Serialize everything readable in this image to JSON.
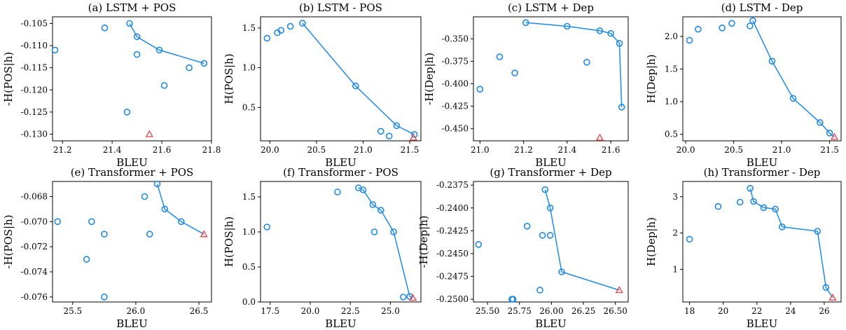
{
  "colors": {
    "series": "#1f8ae6",
    "marker": "#e05050",
    "axis": "#000000"
  },
  "chart_data": [
    {
      "type": "scatter",
      "title": "(a) LSTM + POS",
      "xlabel": "BLEU",
      "ylabel": "-H(POS|h)",
      "xlim": [
        21.16,
        21.8
      ],
      "ylim": [
        -0.1315,
        -0.1035
      ],
      "xticks": [
        21.2,
        21.4,
        21.6,
        21.8
      ],
      "xtick_labels": [
        "21.2",
        "21.4",
        "21.6",
        "21.8"
      ],
      "yticks": [
        -0.105,
        -0.11,
        -0.115,
        -0.12,
        -0.125,
        -0.13
      ],
      "ytick_labels": [
        "-0.105",
        "-0.110",
        "-0.115",
        "-0.120",
        "-0.125",
        "-0.130"
      ],
      "points": [
        [
          21.17,
          -0.111
        ],
        [
          21.37,
          -0.106
        ],
        [
          21.47,
          -0.105
        ],
        [
          21.5,
          -0.108
        ],
        [
          21.59,
          -0.111
        ],
        [
          21.77,
          -0.114
        ],
        [
          21.5,
          -0.112
        ],
        [
          21.71,
          -0.115
        ],
        [
          21.61,
          -0.119
        ],
        [
          21.46,
          -0.125
        ]
      ],
      "front": [
        [
          21.47,
          -0.105
        ],
        [
          21.5,
          -0.108
        ],
        [
          21.59,
          -0.111
        ],
        [
          21.77,
          -0.114
        ]
      ],
      "marker": [
        21.55,
        -0.13
      ],
      "grid": false
    },
    {
      "type": "scatter",
      "title": "(b) LSTM - POS",
      "xlabel": "BLEU",
      "ylabel": "H(POS|h)",
      "xlim": [
        19.9,
        21.62
      ],
      "ylim": [
        0.08,
        1.64
      ],
      "xticks": [
        20.0,
        20.5,
        21.0,
        21.5
      ],
      "xtick_labels": [
        "20.0",
        "20.5",
        "21.0",
        "21.5"
      ],
      "yticks": [
        0.5,
        1.0,
        1.5
      ],
      "ytick_labels": [
        "0.5",
        "1.0",
        "1.5"
      ],
      "points": [
        [
          19.97,
          1.37
        ],
        [
          20.08,
          1.44
        ],
        [
          20.12,
          1.47
        ],
        [
          20.22,
          1.52
        ],
        [
          20.35,
          1.56
        ],
        [
          20.92,
          0.77
        ],
        [
          21.19,
          0.2
        ],
        [
          21.28,
          0.14
        ],
        [
          21.36,
          0.27
        ],
        [
          21.55,
          0.16
        ]
      ],
      "front": [
        [
          20.35,
          1.56
        ],
        [
          20.92,
          0.77
        ],
        [
          21.36,
          0.27
        ],
        [
          21.55,
          0.16
        ]
      ],
      "marker": [
        21.54,
        0.12
      ],
      "grid": false
    },
    {
      "type": "scatter",
      "title": "(c) LSTM + Dep",
      "xlabel": "BLEU",
      "ylabel": "-H(Dep|h)",
      "xlim": [
        20.97,
        21.68
      ],
      "ylim": [
        -0.4635,
        -0.3255
      ],
      "xticks": [
        21.0,
        21.2,
        21.4,
        21.6
      ],
      "xtick_labels": [
        "21.0",
        "21.2",
        "21.4",
        "21.6"
      ],
      "yticks": [
        -0.35,
        -0.375,
        -0.4,
        -0.425,
        -0.45
      ],
      "ytick_labels": [
        "-0.350",
        "-0.375",
        "-0.400",
        "-0.425",
        "-0.450"
      ],
      "points": [
        [
          21.0,
          -0.406
        ],
        [
          21.09,
          -0.37
        ],
        [
          21.16,
          -0.388
        ],
        [
          21.21,
          -0.332
        ],
        [
          21.4,
          -0.336
        ],
        [
          21.55,
          -0.341
        ],
        [
          21.6,
          -0.344
        ],
        [
          21.64,
          -0.355
        ],
        [
          21.65,
          -0.426
        ],
        [
          21.49,
          -0.376
        ]
      ],
      "front": [
        [
          21.21,
          -0.332
        ],
        [
          21.4,
          -0.336
        ],
        [
          21.55,
          -0.341
        ],
        [
          21.6,
          -0.344
        ],
        [
          21.64,
          -0.355
        ],
        [
          21.65,
          -0.426
        ]
      ],
      "marker": [
        21.55,
        -0.46
      ],
      "grid": false
    },
    {
      "type": "scatter",
      "title": "(d) LSTM - Dep",
      "xlabel": "BLEU",
      "ylabel": "H(Dep|h)",
      "xlim": [
        19.97,
        21.62
      ],
      "ylim": [
        0.4,
        2.3
      ],
      "xticks": [
        20.0,
        20.5,
        21.0,
        21.5
      ],
      "xtick_labels": [
        "20.0",
        "20.5",
        "21.0",
        "21.5"
      ],
      "yticks": [
        0.5,
        1.0,
        1.5,
        2.0
      ],
      "ytick_labels": [
        "0.5",
        "1.0",
        "1.5",
        "2.0"
      ],
      "points": [
        [
          20.04,
          1.94
        ],
        [
          20.13,
          2.11
        ],
        [
          20.38,
          2.13
        ],
        [
          20.48,
          2.2
        ],
        [
          20.67,
          2.16
        ],
        [
          20.7,
          2.24
        ],
        [
          20.9,
          1.62
        ],
        [
          21.12,
          1.05
        ],
        [
          21.4,
          0.68
        ],
        [
          21.5,
          0.52
        ]
      ],
      "front": [
        [
          20.7,
          2.24
        ],
        [
          20.9,
          1.62
        ],
        [
          21.12,
          1.05
        ],
        [
          21.4,
          0.68
        ],
        [
          21.5,
          0.52
        ],
        [
          21.55,
          0.46
        ]
      ],
      "marker": [
        21.55,
        0.46
      ],
      "grid": false
    },
    {
      "type": "scatter",
      "title": "(e) Transformer + POS",
      "xlabel": "BLEU",
      "ylabel": "-H(POS|h)",
      "xlim": [
        25.34,
        26.6
      ],
      "ylim": [
        -0.0764,
        -0.0668
      ],
      "xticks": [
        25.5,
        26.0,
        26.5
      ],
      "xtick_labels": [
        "25.5",
        "26.0",
        "26.5"
      ],
      "yticks": [
        -0.068,
        -0.07,
        -0.072,
        -0.074,
        -0.076
      ],
      "ytick_labels": [
        "-0.068",
        "-0.070",
        "-0.072",
        "-0.074",
        "-0.076"
      ],
      "points": [
        [
          25.38,
          -0.07
        ],
        [
          25.65,
          -0.07
        ],
        [
          25.61,
          -0.073
        ],
        [
          25.75,
          -0.071
        ],
        [
          25.75,
          -0.076
        ],
        [
          26.07,
          -0.068
        ],
        [
          26.11,
          -0.071
        ],
        [
          26.17,
          -0.067
        ],
        [
          26.23,
          -0.069
        ],
        [
          26.36,
          -0.07
        ]
      ],
      "front": [
        [
          26.17,
          -0.067
        ],
        [
          26.23,
          -0.069
        ],
        [
          26.36,
          -0.07
        ],
        [
          26.54,
          -0.071
        ]
      ],
      "marker": [
        26.54,
        -0.071
      ],
      "grid": false
    },
    {
      "type": "scatter",
      "title": "(f) Transformer - POS",
      "xlabel": "BLEU",
      "ylabel": "H(POS|h)",
      "xlim": [
        16.9,
        26.9
      ],
      "ylim": [
        0.0,
        1.72
      ],
      "xticks": [
        17.5,
        20.0,
        22.5,
        25.0
      ],
      "xtick_labels": [
        "17.5",
        "20.0",
        "22.5",
        "25.0"
      ],
      "yticks": [
        0.0,
        0.5,
        1.0,
        1.5
      ],
      "ytick_labels": [
        "0.0",
        "0.5",
        "1.0",
        "1.5"
      ],
      "points": [
        [
          17.3,
          1.07
        ],
        [
          21.7,
          1.57
        ],
        [
          23.0,
          1.63
        ],
        [
          23.3,
          1.6
        ],
        [
          23.9,
          1.39
        ],
        [
          24.4,
          1.31
        ],
        [
          24.0,
          1.0
        ],
        [
          25.2,
          1.0
        ],
        [
          25.8,
          0.07
        ],
        [
          26.2,
          0.08
        ]
      ],
      "front": [
        [
          23.0,
          1.63
        ],
        [
          23.3,
          1.6
        ],
        [
          23.9,
          1.39
        ],
        [
          24.4,
          1.31
        ],
        [
          25.2,
          1.0
        ],
        [
          26.2,
          0.08
        ],
        [
          26.4,
          0.06
        ]
      ],
      "marker": [
        26.4,
        0.06
      ],
      "grid": false
    },
    {
      "type": "scatter",
      "title": "(g) Transformer + Dep",
      "xlabel": "BLEU",
      "ylabel": "-H(Dep|h)",
      "xlim": [
        25.39,
        26.6
      ],
      "ylim": [
        -0.2503,
        -0.2371
      ],
      "xticks": [
        25.5,
        25.75,
        26.0,
        26.25,
        26.5
      ],
      "xtick_labels": [
        "25.50",
        "25.75",
        "26.00",
        "26.25",
        "26.50"
      ],
      "yticks": [
        -0.2375,
        -0.24,
        -0.2425,
        -0.245,
        -0.2475,
        -0.25
      ],
      "ytick_labels": [
        "-0.2375",
        "-0.2400",
        "-0.2425",
        "-0.2450",
        "-0.2475",
        "-0.2500"
      ],
      "points": [
        [
          25.43,
          -0.244
        ],
        [
          25.69,
          -0.25
        ],
        [
          25.7,
          -0.25
        ],
        [
          25.81,
          -0.242
        ],
        [
          25.91,
          -0.249
        ],
        [
          25.93,
          -0.243
        ],
        [
          25.95,
          -0.238
        ],
        [
          25.99,
          -0.243
        ],
        [
          25.99,
          -0.24
        ],
        [
          26.08,
          -0.247
        ]
      ],
      "front": [
        [
          25.95,
          -0.238
        ],
        [
          25.99,
          -0.24
        ],
        [
          26.08,
          -0.247
        ],
        [
          26.53,
          -0.249
        ]
      ],
      "marker": [
        26.53,
        -0.249
      ],
      "grid": false
    },
    {
      "type": "scatter",
      "title": "(h) Transformer - Dep",
      "xlabel": "BLEU",
      "ylabel": "H(Dep|h)",
      "xlim": [
        17.6,
        27.0
      ],
      "ylim": [
        0.1,
        3.42
      ],
      "xticks": [
        18,
        20,
        22,
        24,
        26
      ],
      "xtick_labels": [
        "18",
        "20",
        "22",
        "24",
        "26"
      ],
      "yticks": [
        1,
        2,
        3
      ],
      "ytick_labels": [
        "1",
        "2",
        "3"
      ],
      "points": [
        [
          18.0,
          1.83
        ],
        [
          19.7,
          2.73
        ],
        [
          21.0,
          2.85
        ],
        [
          21.6,
          3.23
        ],
        [
          21.8,
          2.87
        ],
        [
          22.4,
          2.7
        ],
        [
          23.1,
          2.66
        ],
        [
          23.5,
          2.17
        ],
        [
          25.6,
          2.05
        ],
        [
          26.1,
          0.5
        ]
      ],
      "front": [
        [
          21.6,
          3.23
        ],
        [
          21.8,
          2.87
        ],
        [
          22.4,
          2.7
        ],
        [
          23.1,
          2.66
        ],
        [
          23.5,
          2.17
        ],
        [
          25.6,
          2.05
        ],
        [
          26.1,
          0.5
        ],
        [
          26.5,
          0.22
        ]
      ],
      "marker": [
        26.5,
        0.22
      ],
      "grid": false
    }
  ]
}
